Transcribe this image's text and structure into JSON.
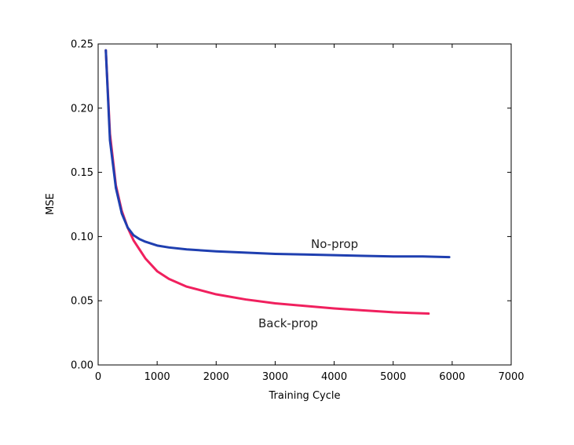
{
  "chart_data": {
    "type": "line",
    "title": "",
    "xlabel": "Training Cycle",
    "ylabel": "MSE",
    "xlim": [
      0,
      7000
    ],
    "ylim": [
      0,
      0.25
    ],
    "xticks": [
      0,
      1000,
      2000,
      3000,
      4000,
      5000,
      6000,
      7000
    ],
    "yticks": [
      0.0,
      0.05,
      0.1,
      0.15,
      0.2,
      0.25
    ],
    "xtick_labels": [
      "0",
      "1000",
      "2000",
      "3000",
      "4000",
      "5000",
      "6000",
      "7000"
    ],
    "ytick_labels": [
      "0.00",
      "0.05",
      "0.10",
      "0.15",
      "0.20",
      "0.25"
    ],
    "grid": false,
    "legend": "none",
    "series": [
      {
        "name": "No-prop",
        "color": "#1f3fb0",
        "x": [
          130,
          200,
          300,
          400,
          500,
          600,
          700,
          800,
          1000,
          1200,
          1500,
          2000,
          2500,
          3000,
          3500,
          4000,
          4500,
          5000,
          5500,
          5950
        ],
        "y": [
          0.245,
          0.175,
          0.138,
          0.118,
          0.107,
          0.101,
          0.098,
          0.096,
          0.093,
          0.0915,
          0.09,
          0.0885,
          0.0875,
          0.0865,
          0.086,
          0.0855,
          0.085,
          0.0845,
          0.0845,
          0.084
        ]
      },
      {
        "name": "Back-prop",
        "color": "#f0205e",
        "x": [
          130,
          200,
          300,
          400,
          500,
          600,
          700,
          800,
          1000,
          1200,
          1500,
          2000,
          2500,
          3000,
          3500,
          4000,
          4500,
          5000,
          5300,
          5600
        ],
        "y": [
          0.245,
          0.18,
          0.14,
          0.12,
          0.107,
          0.097,
          0.09,
          0.083,
          0.073,
          0.067,
          0.061,
          0.055,
          0.051,
          0.048,
          0.046,
          0.044,
          0.0425,
          0.041,
          0.0405,
          0.04
        ]
      }
    ]
  }
}
